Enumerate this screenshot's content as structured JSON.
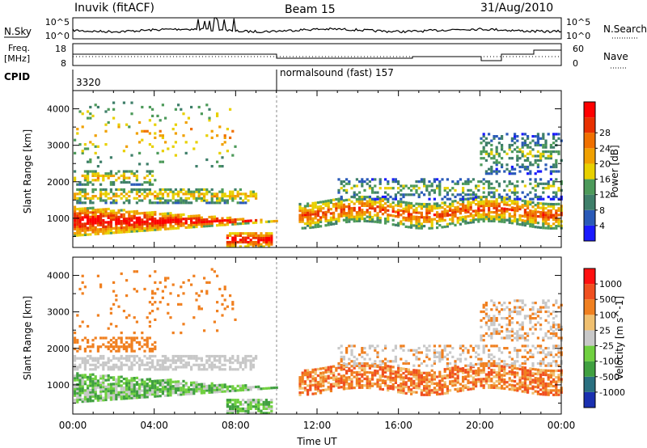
{
  "header": {
    "title": "Inuvik (fitACF)",
    "beam": "Beam 15",
    "date": "31/Aug/2010"
  },
  "strip_nsky": {
    "left_label": "N.Sky",
    "left_ticks": [
      "10^5",
      "10^0"
    ],
    "right_label": "N.Search",
    "right_ticks": [
      "10^5",
      "10^0"
    ]
  },
  "strip_freq": {
    "left_label_1": "Freq.",
    "left_label_2": "[MHz]",
    "left_ticks": [
      "18",
      "8"
    ],
    "right_label": "Nave",
    "right_ticks": [
      "60",
      "0"
    ]
  },
  "strip_cpid": {
    "label": "CPID",
    "entries": [
      "3320",
      "normalsound (fast) 157"
    ]
  },
  "colors": {
    "power": [
      "#1a1aff",
      "#2a5ab8",
      "#3f7f6a",
      "#4d9a5a",
      "#e8d000",
      "#f0a000",
      "#f07000",
      "#e83000",
      "#ff0000"
    ],
    "velocity": [
      "#1a30b0",
      "#2a7080",
      "#40a040",
      "#70d040",
      "#c8c8c8",
      "#f0c070",
      "#f08020",
      "#f05020",
      "#ff1010"
    ]
  },
  "chart_data": [
    {
      "type": "heatmap",
      "ylabel": "Slant Range [km]",
      "yticks": [
        "1000",
        "2000",
        "3000",
        "4000"
      ],
      "ylim": [
        200,
        4500
      ],
      "colorbar_label": "Power [dB]",
      "colorbar_ticks": [
        "4",
        "8",
        "12",
        "16",
        "20",
        "24",
        "28"
      ]
    },
    {
      "type": "heatmap",
      "ylabel": "Slant Range [km]",
      "yticks": [
        "1000",
        "2000",
        "3000",
        "4000"
      ],
      "ylim": [
        200,
        4500
      ],
      "xlabel": "Time UT",
      "xticks": [
        "00:00",
        "04:00",
        "08:00",
        "12:00",
        "16:00",
        "20:00",
        "00:00"
      ],
      "colorbar_label": "Velocity [m s^-1]",
      "colorbar_ticks": [
        "1000",
        "500",
        "100",
        "25",
        "-25",
        "-100",
        "-500",
        "-1000"
      ]
    }
  ]
}
